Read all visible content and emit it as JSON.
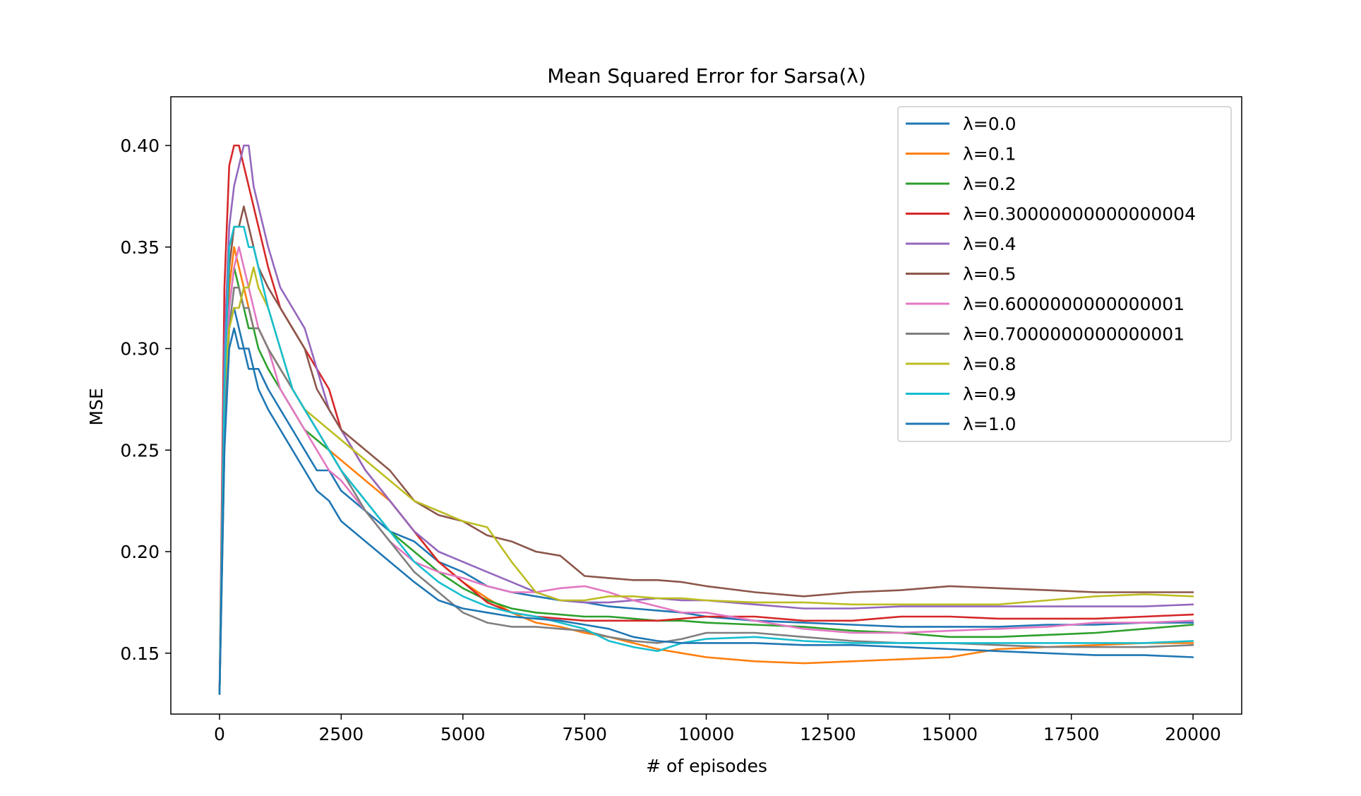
{
  "chart_data": {
    "type": "line",
    "title": "Mean Squared Error for Sarsa(λ)",
    "xlabel": "# of episodes",
    "ylabel": "MSE",
    "xlim": [
      -1000,
      21000
    ],
    "ylim": [
      0.12,
      0.424
    ],
    "xticks": [
      0,
      2500,
      5000,
      7500,
      10000,
      12500,
      15000,
      17500,
      20000
    ],
    "xtick_labels": [
      "0",
      "2500",
      "5000",
      "7500",
      "10000",
      "12500",
      "15000",
      "17500",
      "20000"
    ],
    "yticks": [
      0.15,
      0.2,
      0.25,
      0.3,
      0.35,
      0.4
    ],
    "ytick_labels": [
      "0.15",
      "0.20",
      "0.25",
      "0.30",
      "0.35",
      "0.40"
    ],
    "grid": false,
    "legend_position": "upper right",
    "x": [
      0,
      100,
      200,
      300,
      400,
      500,
      600,
      700,
      800,
      1000,
      1250,
      1500,
      1750,
      2000,
      2250,
      2500,
      3000,
      3500,
      4000,
      4500,
      5000,
      5500,
      6000,
      6500,
      7000,
      7500,
      8000,
      8500,
      9000,
      9500,
      10000,
      11000,
      12000,
      13000,
      14000,
      15000,
      16000,
      17000,
      18000,
      19000,
      20000
    ],
    "series": [
      {
        "name": "λ=0.0",
        "color": "#1f77b4",
        "values": [
          0.13,
          0.26,
          0.31,
          0.32,
          0.31,
          0.3,
          0.3,
          0.29,
          0.29,
          0.28,
          0.27,
          0.26,
          0.25,
          0.24,
          0.24,
          0.23,
          0.22,
          0.21,
          0.205,
          0.195,
          0.19,
          0.183,
          0.18,
          0.178,
          0.176,
          0.175,
          0.173,
          0.172,
          0.171,
          0.17,
          0.168,
          0.166,
          0.165,
          0.164,
          0.163,
          0.163,
          0.163,
          0.164,
          0.164,
          0.165,
          0.165
        ]
      },
      {
        "name": "λ=0.1",
        "color": "#ff7f0e",
        "values": [
          0.13,
          0.27,
          0.33,
          0.35,
          0.34,
          0.33,
          0.32,
          0.31,
          0.31,
          0.3,
          0.29,
          0.28,
          0.27,
          0.26,
          0.25,
          0.245,
          0.235,
          0.225,
          0.21,
          0.195,
          0.185,
          0.177,
          0.17,
          0.165,
          0.163,
          0.16,
          0.158,
          0.155,
          0.152,
          0.15,
          0.148,
          0.146,
          0.145,
          0.146,
          0.147,
          0.148,
          0.152,
          0.153,
          0.154,
          0.155,
          0.155
        ]
      },
      {
        "name": "λ=0.2",
        "color": "#2ca02c",
        "values": [
          0.13,
          0.25,
          0.32,
          0.34,
          0.33,
          0.32,
          0.31,
          0.31,
          0.3,
          0.29,
          0.28,
          0.27,
          0.26,
          0.255,
          0.25,
          0.24,
          0.225,
          0.21,
          0.2,
          0.19,
          0.182,
          0.176,
          0.172,
          0.17,
          0.169,
          0.168,
          0.168,
          0.167,
          0.166,
          0.166,
          0.165,
          0.164,
          0.163,
          0.161,
          0.16,
          0.158,
          0.158,
          0.159,
          0.16,
          0.162,
          0.164
        ]
      },
      {
        "name": "λ=0.30000000000000004",
        "color": "#d62728",
        "values": [
          0.13,
          0.33,
          0.39,
          0.4,
          0.4,
          0.39,
          0.38,
          0.37,
          0.36,
          0.34,
          0.32,
          0.31,
          0.3,
          0.29,
          0.28,
          0.26,
          0.24,
          0.225,
          0.21,
          0.195,
          0.185,
          0.175,
          0.17,
          0.168,
          0.167,
          0.166,
          0.166,
          0.166,
          0.166,
          0.167,
          0.168,
          0.168,
          0.166,
          0.166,
          0.168,
          0.168,
          0.167,
          0.167,
          0.167,
          0.168,
          0.169
        ]
      },
      {
        "name": "λ=0.4",
        "color": "#9467bd",
        "values": [
          0.13,
          0.3,
          0.36,
          0.38,
          0.39,
          0.4,
          0.4,
          0.38,
          0.37,
          0.35,
          0.33,
          0.32,
          0.31,
          0.29,
          0.27,
          0.26,
          0.24,
          0.225,
          0.21,
          0.2,
          0.195,
          0.19,
          0.185,
          0.18,
          0.176,
          0.175,
          0.175,
          0.176,
          0.177,
          0.176,
          0.176,
          0.174,
          0.172,
          0.172,
          0.173,
          0.173,
          0.173,
          0.173,
          0.173,
          0.173,
          0.174
        ]
      },
      {
        "name": "λ=0.5",
        "color": "#8c564b",
        "values": [
          0.13,
          0.28,
          0.34,
          0.36,
          0.36,
          0.37,
          0.36,
          0.35,
          0.34,
          0.33,
          0.32,
          0.31,
          0.3,
          0.28,
          0.27,
          0.26,
          0.25,
          0.24,
          0.225,
          0.218,
          0.215,
          0.208,
          0.205,
          0.2,
          0.198,
          0.188,
          0.187,
          0.186,
          0.186,
          0.185,
          0.183,
          0.18,
          0.178,
          0.18,
          0.181,
          0.183,
          0.182,
          0.181,
          0.18,
          0.18,
          0.18
        ]
      },
      {
        "name": "λ=0.6000000000000001",
        "color": "#e377c2",
        "values": [
          0.13,
          0.27,
          0.32,
          0.34,
          0.35,
          0.34,
          0.33,
          0.32,
          0.31,
          0.3,
          0.28,
          0.27,
          0.26,
          0.25,
          0.24,
          0.235,
          0.22,
          0.205,
          0.195,
          0.19,
          0.187,
          0.183,
          0.18,
          0.18,
          0.182,
          0.183,
          0.18,
          0.176,
          0.173,
          0.17,
          0.17,
          0.166,
          0.162,
          0.16,
          0.16,
          0.161,
          0.162,
          0.163,
          0.165,
          0.165,
          0.166
        ]
      },
      {
        "name": "λ=0.7000000000000001",
        "color": "#7f7f7f",
        "values": [
          0.13,
          0.26,
          0.31,
          0.33,
          0.33,
          0.32,
          0.32,
          0.31,
          0.31,
          0.3,
          0.29,
          0.28,
          0.27,
          0.26,
          0.25,
          0.24,
          0.22,
          0.205,
          0.19,
          0.18,
          0.17,
          0.165,
          0.163,
          0.163,
          0.162,
          0.161,
          0.158,
          0.156,
          0.155,
          0.157,
          0.16,
          0.16,
          0.158,
          0.156,
          0.155,
          0.155,
          0.154,
          0.153,
          0.153,
          0.153,
          0.154
        ]
      },
      {
        "name": "λ=0.8",
        "color": "#bcbd22",
        "values": [
          0.13,
          0.28,
          0.31,
          0.32,
          0.32,
          0.33,
          0.33,
          0.34,
          0.33,
          0.32,
          0.3,
          0.28,
          0.27,
          0.265,
          0.26,
          0.255,
          0.245,
          0.235,
          0.225,
          0.22,
          0.215,
          0.212,
          0.195,
          0.18,
          0.176,
          0.176,
          0.178,
          0.178,
          0.177,
          0.177,
          0.176,
          0.175,
          0.175,
          0.174,
          0.174,
          0.174,
          0.174,
          0.176,
          0.178,
          0.179,
          0.178
        ]
      },
      {
        "name": "λ=0.9",
        "color": "#17becf",
        "values": [
          0.13,
          0.28,
          0.35,
          0.36,
          0.36,
          0.36,
          0.35,
          0.35,
          0.34,
          0.32,
          0.3,
          0.28,
          0.27,
          0.26,
          0.25,
          0.24,
          0.225,
          0.21,
          0.195,
          0.185,
          0.178,
          0.173,
          0.17,
          0.168,
          0.165,
          0.162,
          0.156,
          0.153,
          0.151,
          0.155,
          0.157,
          0.158,
          0.156,
          0.155,
          0.155,
          0.155,
          0.155,
          0.155,
          0.155,
          0.155,
          0.156
        ]
      },
      {
        "name": "λ=1.0",
        "color": "#1f77b4",
        "values": [
          0.13,
          0.25,
          0.3,
          0.31,
          0.3,
          0.3,
          0.29,
          0.29,
          0.28,
          0.27,
          0.26,
          0.25,
          0.24,
          0.23,
          0.225,
          0.215,
          0.205,
          0.195,
          0.185,
          0.176,
          0.172,
          0.17,
          0.168,
          0.167,
          0.166,
          0.164,
          0.162,
          0.158,
          0.156,
          0.155,
          0.155,
          0.155,
          0.154,
          0.154,
          0.153,
          0.152,
          0.151,
          0.15,
          0.149,
          0.149,
          0.148
        ]
      }
    ]
  }
}
